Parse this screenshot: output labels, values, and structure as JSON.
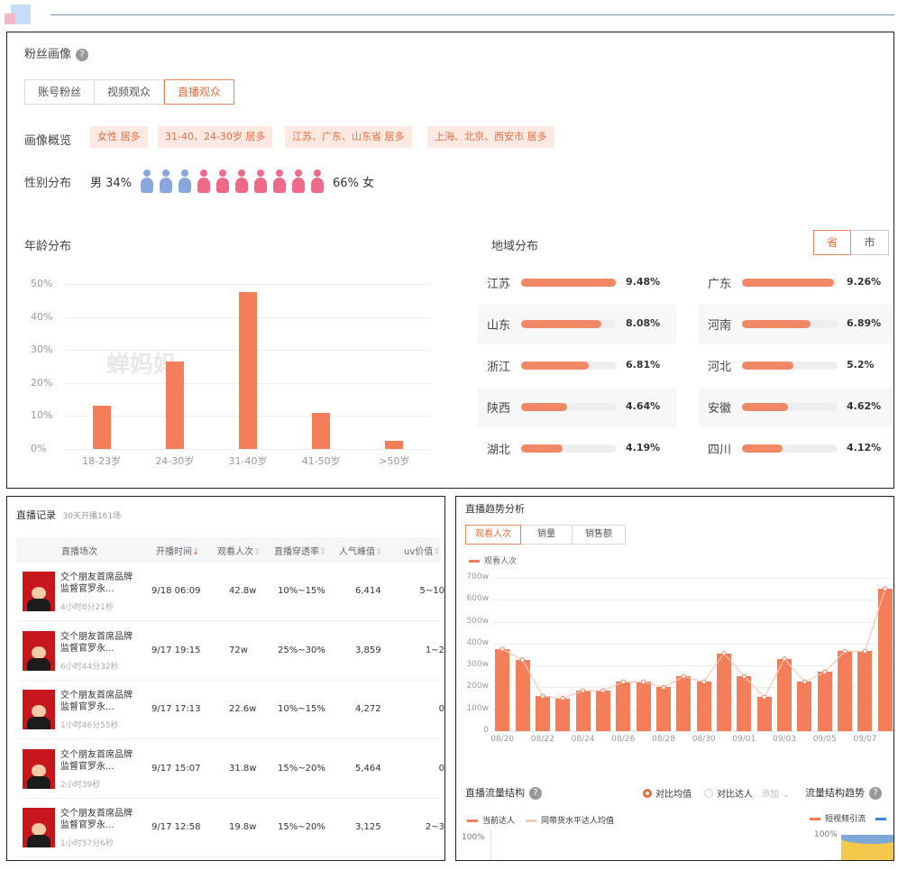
{
  "fan_profile": {
    "title": "粉丝画像",
    "tabs": [
      {
        "label": "账号粉丝",
        "active": false
      },
      {
        "label": "视频观众",
        "active": false
      },
      {
        "label": "直播观众",
        "active": true
      }
    ],
    "overview_label": "画像概览",
    "overview_tags": [
      "女性 居多",
      "31-40、24-30岁 居多",
      "江苏、广东、山东省 居多",
      "上海、北京、西安市 居多"
    ],
    "gender_label": "性别分布",
    "male_text": "男 34%",
    "female_text": "66% 女",
    "male_icons": 3,
    "female_icons": 7,
    "male_color": "#8aa6de",
    "female_color": "#ef6a88"
  },
  "age": {
    "title": "年龄分布",
    "watermark": "蝉妈妈",
    "chart_data": {
      "type": "bar",
      "categories": [
        "18-23岁",
        "24-30岁",
        "31-40岁",
        "41-50岁",
        ">50岁"
      ],
      "values": [
        13,
        26.5,
        47.5,
        11,
        2.5
      ],
      "yticks": [
        "50%",
        "40%",
        "30%",
        "20%",
        "10%",
        "0%"
      ],
      "ylim": [
        0,
        50
      ],
      "color": "#f47e5a"
    }
  },
  "region": {
    "title": "地域分布",
    "toggle": [
      "省",
      "市"
    ],
    "items": [
      {
        "name": "江苏",
        "value": "9.48%",
        "pct": 9.48
      },
      {
        "name": "广东",
        "value": "9.26%",
        "pct": 9.26
      },
      {
        "name": "山东",
        "value": "8.08%",
        "pct": 8.08
      },
      {
        "name": "河南",
        "value": "6.89%",
        "pct": 6.89
      },
      {
        "name": "浙江",
        "value": "6.81%",
        "pct": 6.81
      },
      {
        "name": "河北",
        "value": "5.2%",
        "pct": 5.2
      },
      {
        "name": "陕西",
        "value": "4.64%",
        "pct": 4.64
      },
      {
        "name": "安徽",
        "value": "4.62%",
        "pct": 4.62
      },
      {
        "name": "湖北",
        "value": "4.19%",
        "pct": 4.19
      },
      {
        "name": "四川",
        "value": "4.12%",
        "pct": 4.12
      }
    ]
  },
  "records": {
    "title": "直播记录",
    "subtitle": "30天开播161场",
    "columns": [
      "直播场次",
      "开播时间",
      "观看人次",
      "直播穿透率",
      "人气峰值",
      "uv价值"
    ],
    "rows": [
      {
        "title": "交个朋友首席品牌监督官罗永...",
        "duration": "4小时8分21秒",
        "start": "9/18 06:09",
        "views": "42.8w",
        "rate": "10%~15%",
        "peak": "6,414",
        "uv": "5~10"
      },
      {
        "title": "交个朋友首席品牌监督官罗永...",
        "duration": "6小时44分32秒",
        "start": "9/17 19:15",
        "views": "72w",
        "rate": "25%~30%",
        "peak": "3,859",
        "uv": "1~2"
      },
      {
        "title": "交个朋友首席品牌监督官罗永...",
        "duration": "1小时46分55秒",
        "start": "9/17 17:13",
        "views": "22.6w",
        "rate": "10%~15%",
        "peak": "4,272",
        "uv": "0"
      },
      {
        "title": "交个朋友首席品牌监督官罗永...",
        "duration": "2小时39秒",
        "start": "9/17 15:07",
        "views": "31.8w",
        "rate": "15%~20%",
        "peak": "5,464",
        "uv": "0"
      },
      {
        "title": "交个朋友首席品牌监督官罗永...",
        "duration": "1小时57分6秒",
        "start": "9/17 12:58",
        "views": "19.8w",
        "rate": "15%~20%",
        "peak": "3,125",
        "uv": "2~3"
      }
    ]
  },
  "trend": {
    "title": "直播趋势分析",
    "tabs": [
      {
        "label": "观看人次",
        "active": true
      },
      {
        "label": "销量",
        "active": false
      },
      {
        "label": "销售额",
        "active": false
      }
    ],
    "legend": "观看人次",
    "chart_data": {
      "type": "bar",
      "categories": [
        "08/20",
        "08/21",
        "08/22",
        "08/23",
        "08/24",
        "08/25",
        "08/26",
        "08/27",
        "08/28",
        "08/29",
        "08/30",
        "08/31",
        "09/01",
        "09/02",
        "09/03",
        "09/04",
        "09/05",
        "09/06",
        "09/07",
        "09/08"
      ],
      "values": [
        375,
        325,
        160,
        150,
        185,
        185,
        225,
        225,
        200,
        250,
        225,
        355,
        250,
        155,
        330,
        225,
        270,
        365,
        365,
        650
      ],
      "xtick_labels": [
        "08/20",
        "08/22",
        "08/24",
        "08/26",
        "08/28",
        "08/30",
        "09/01",
        "09/03",
        "09/05",
        "09/07"
      ],
      "yticks": [
        "700w",
        "600w",
        "500w",
        "400w",
        "300w",
        "200w",
        "100w",
        "0"
      ],
      "ylim": [
        0,
        700
      ],
      "color": "#f47e5a"
    },
    "flow_title": "直播流量结构",
    "compare_avg": "对比均值",
    "compare_person": "对比达人",
    "add_label": "添加",
    "flow_trend_title": "流量结构趋势",
    "legend_current": "当前达人",
    "legend_peer": "同带货水平达人均值",
    "legend_short_video": "短视频引流",
    "pct_100_left": "100%",
    "pct_100_right": "100%"
  }
}
